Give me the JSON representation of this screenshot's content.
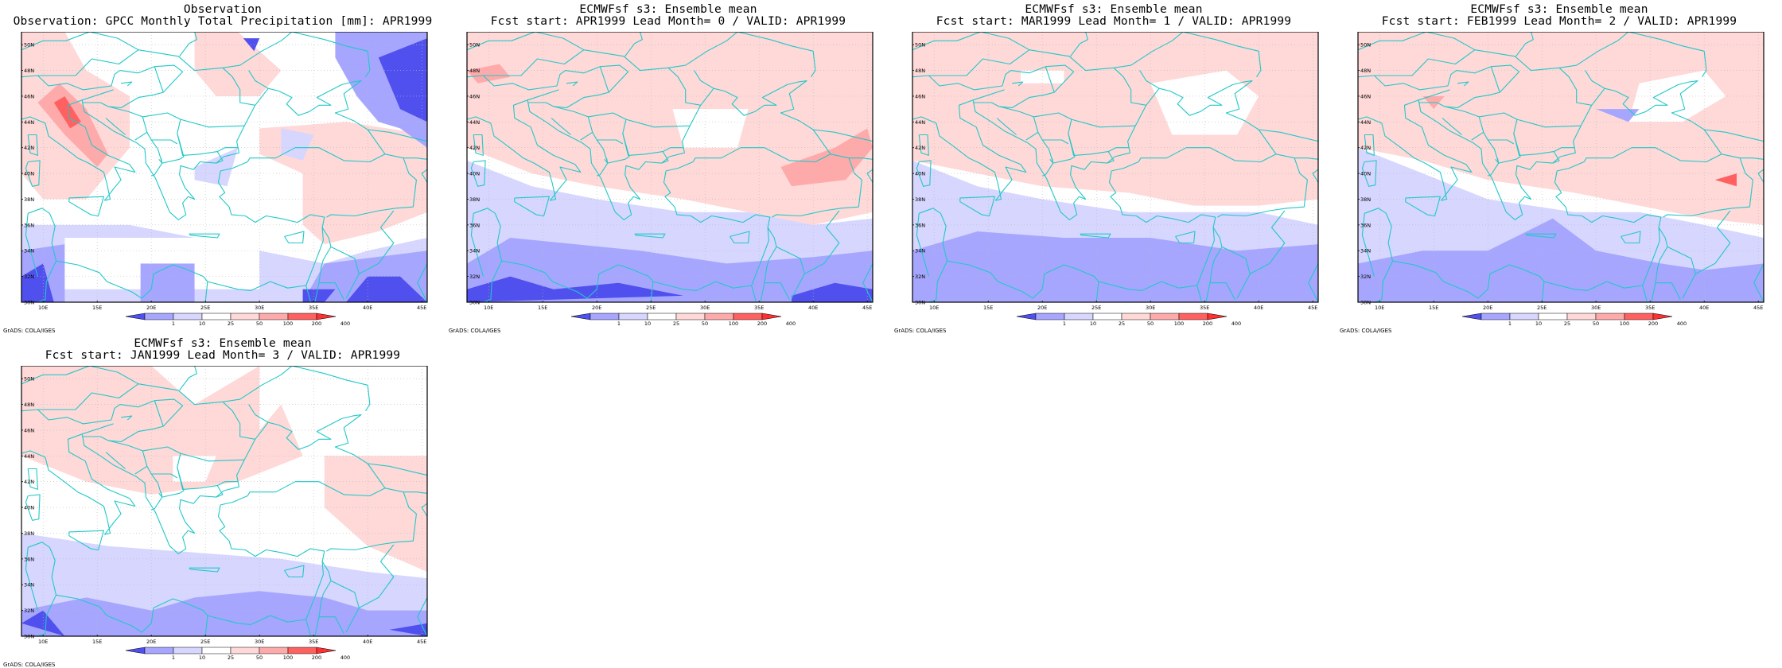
{
  "panels": [
    {
      "title1": "Observation",
      "title2": "Observation: GPCC Monthly Total Precipitation [mm]: APR1999",
      "footer": "GrADS: COLA/IGES",
      "variant": "obs"
    },
    {
      "title1": "ECMWFsf s3: Ensemble mean",
      "title2": "Fcst start: APR1999  Lead Month= 0 / VALID: APR1999",
      "footer": "GrADS: COLA/IGES",
      "variant": "lead0"
    },
    {
      "title1": "ECMWFsf s3: Ensemble mean",
      "title2": "Fcst start: MAR1999  Lead Month= 1 / VALID: APR1999",
      "footer": "GrADS: COLA/IGES",
      "variant": "lead1"
    },
    {
      "title1": "ECMWFsf s3: Ensemble mean",
      "title2": "Fcst start: FEB1999  Lead Month= 2 / VALID: APR1999",
      "footer": "GrADS: COLA/IGES",
      "variant": "lead2"
    },
    {
      "title1": "ECMWFsf s3: Ensemble mean",
      "title2": "Fcst start: JAN1999  Lead Month= 3 / VALID: APR1999",
      "footer": "GrADS: COLA/IGES",
      "variant": "lead3"
    }
  ],
  "axes": {
    "lat_labels": [
      "30N",
      "32N",
      "34N",
      "36N",
      "38N",
      "40N",
      "42N",
      "44N",
      "46N",
      "48N",
      "50N"
    ],
    "lon_labels": [
      "10E",
      "15E",
      "20E",
      "25E",
      "30E",
      "35E",
      "40E",
      "45E"
    ]
  },
  "colorbar": {
    "labels": [
      "1",
      "10",
      "25",
      "50",
      "100",
      "200",
      "400"
    ],
    "colors": [
      "#5050ee",
      "#a6a6ff",
      "#d6d6ff",
      "#ffffff",
      "#ffd8d8",
      "#ffaaaa",
      "#ff6060",
      "#ff3030"
    ]
  },
  "map_colors": {
    "coast": "#22c8c8",
    "grid": "#bbbbbb"
  }
}
